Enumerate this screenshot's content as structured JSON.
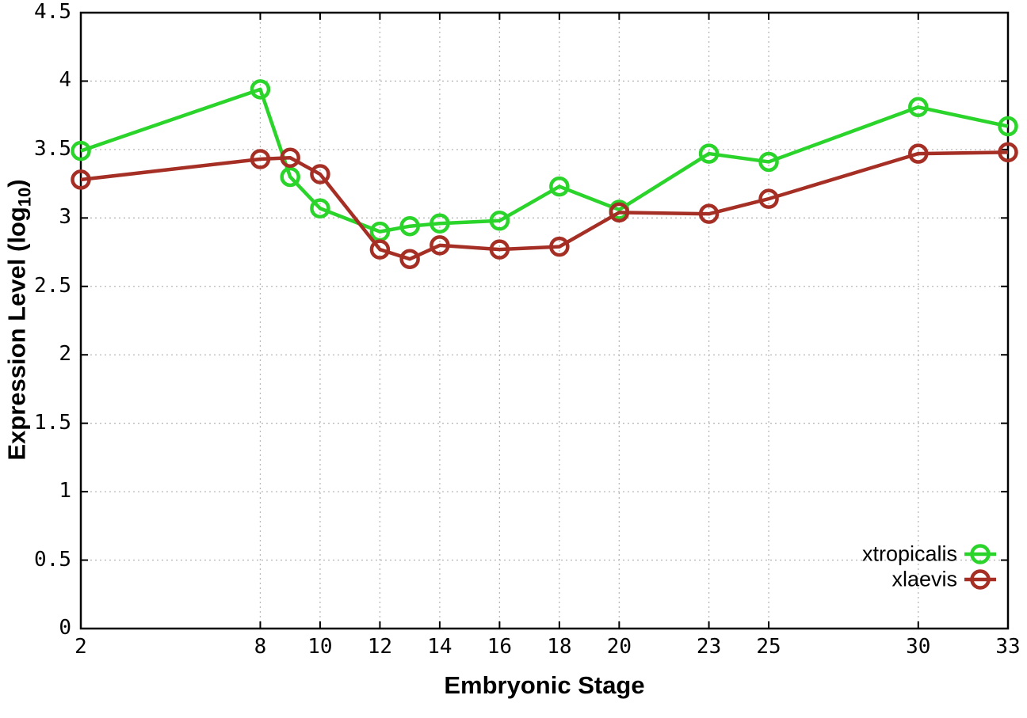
{
  "chart_data": {
    "type": "line",
    "title": "",
    "xlabel": "Embryonic Stage",
    "ylabel": "Expression Level (log10)",
    "ylabel_parts": {
      "text": "Expression Level (log",
      "subscript": "10",
      "close": ")"
    },
    "xlim": [
      2,
      33
    ],
    "ylim": [
      0,
      4.5
    ],
    "xtick_values": [
      2,
      8,
      10,
      12,
      14,
      16,
      18,
      20,
      23,
      25,
      30,
      33
    ],
    "xtick_labels": [
      "2",
      "8",
      "10",
      "12",
      "14",
      "16",
      "18",
      "20",
      "23",
      "25",
      "30",
      "33"
    ],
    "ytick_values": [
      0,
      0.5,
      1,
      1.5,
      2,
      2.5,
      3,
      3.5,
      4,
      4.5
    ],
    "ytick_labels": [
      "0",
      "0.5",
      "1",
      "1.5",
      "2",
      "2.5",
      "3",
      "3.5",
      "4",
      "4.5"
    ],
    "grid": true,
    "legend_position": "bottom-right",
    "marker": "open-circle",
    "x": [
      2,
      8,
      9,
      10,
      12,
      13,
      14,
      16,
      18,
      20,
      23,
      25,
      30,
      33
    ],
    "series": [
      {
        "name": "xtropicalis",
        "color": "#2bd42b",
        "values": [
          3.49,
          3.94,
          3.3,
          3.07,
          2.9,
          2.94,
          2.96,
          2.98,
          3.23,
          3.06,
          3.47,
          3.41,
          3.81,
          3.67
        ]
      },
      {
        "name": "xlaevis",
        "color": "#a52f25",
        "values": [
          3.28,
          3.43,
          3.44,
          3.32,
          2.77,
          2.7,
          2.8,
          2.77,
          2.79,
          3.04,
          3.03,
          3.14,
          3.47,
          3.48
        ]
      }
    ],
    "colors": {
      "background": "#ffffff",
      "axis": "#000000",
      "grid": "#b8b8b8"
    }
  }
}
